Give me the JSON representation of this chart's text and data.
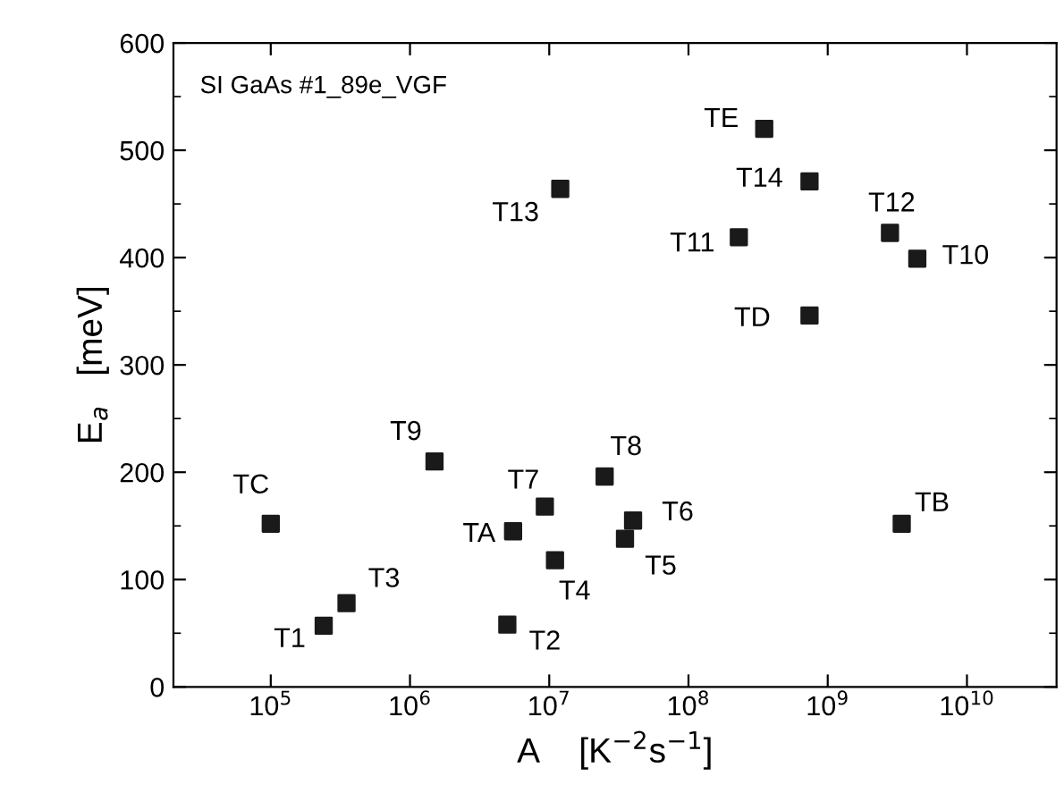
{
  "chart_data": {
    "type": "scatter",
    "xlabel": "A    [K$^{−2}$s$^{−1}$]",
    "ylabel": "E$_{a}$   [meV]",
    "log": "x",
    "marker": "square",
    "grid": false,
    "legend": false,
    "xlim": [
      20000.0,
      44000000000.0
    ],
    "ylim": [
      0,
      600
    ],
    "xticks": [
      {
        "value": 100000.0,
        "label": "10$^{5}$"
      },
      {
        "value": 1000000.0,
        "label": "10$^{6}$"
      },
      {
        "value": 10000000.0,
        "label": "10$^{7}$"
      },
      {
        "value": 100000000.0,
        "label": "10$^{8}$"
      },
      {
        "value": 1000000000.0,
        "label": "10$^{9}$"
      },
      {
        "value": 10000000000.0,
        "label": "10$^{10}$"
      }
    ],
    "yticks": [
      0,
      100,
      200,
      300,
      400,
      500,
      600
    ],
    "series": [
      {
        "color": "#1a1a1a",
        "x": [
          100000.0,
          240000.0,
          350000.0,
          1500000.0,
          5500000.0,
          5000000.0,
          9300000.0,
          11000000.0,
          25000000.0,
          40000000.0,
          35000000.0,
          3400000000.0,
          12000000.0,
          350000000.0,
          740000000.0,
          230000000.0,
          2800000000.0,
          4400000000.0,
          740000000.0
        ],
        "values": [
          152,
          57,
          78,
          210,
          145,
          58,
          168,
          118,
          196,
          155,
          138,
          152,
          464,
          520,
          471,
          419,
          423,
          399,
          346
        ]
      }
    ],
    "annotations": [
      "SI GaAs #1_89e_VGF",
      {
        "text": "TC",
        "x": 100000.0,
        "y": 152
      },
      {
        "text": "T1",
        "x": 240000.0,
        "y": 57
      },
      {
        "text": "T3",
        "x": 350000.0,
        "y": 78
      },
      {
        "text": "T9",
        "x": 1500000.0,
        "y": 210
      },
      {
        "text": "TA",
        "x": 5500000.0,
        "y": 145
      },
      {
        "text": "T2",
        "x": 5000000.0,
        "y": 58
      },
      {
        "text": "T7",
        "x": 9300000.0,
        "y": 168
      },
      {
        "text": "T4",
        "x": 11000000.0,
        "y": 118
      },
      {
        "text": "T8",
        "x": 25000000.0,
        "y": 196
      },
      {
        "text": "T6",
        "x": 40000000.0,
        "y": 155
      },
      {
        "text": "T5",
        "x": 35000000.0,
        "y": 138
      },
      {
        "text": "TB",
        "x": 3400000000.0,
        "y": 152
      },
      {
        "text": "T13",
        "x": 12000000.0,
        "y": 464
      },
      {
        "text": "TE",
        "x": 350000000.0,
        "y": 520
      },
      {
        "text": "T14",
        "x": 740000000.0,
        "y": 471
      },
      {
        "text": "T11",
        "x": 230000000.0,
        "y": 419
      },
      {
        "text": "T12",
        "x": 2800000000.0,
        "y": 423
      },
      {
        "text": "T10",
        "x": 4400000000.0,
        "y": 399
      },
      {
        "text": "TD",
        "x": 740000000.0,
        "y": 346
      }
    ]
  }
}
